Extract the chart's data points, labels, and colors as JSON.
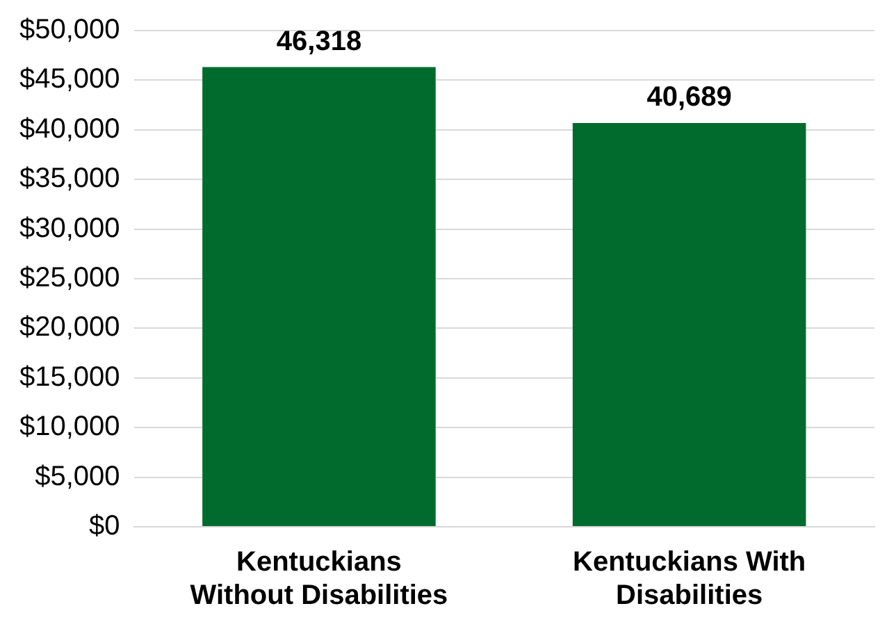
{
  "chart_data": {
    "type": "bar",
    "categories": [
      "Kentuckians Without Disabilities",
      "Kentuckians With Disabilities"
    ],
    "values": [
      46318,
      40689
    ],
    "color": "#006b2d",
    "ylim": [
      0,
      50000
    ],
    "yticks": [
      {
        "value": 0,
        "label": "$0"
      },
      {
        "value": 5000,
        "label": "$5,000"
      },
      {
        "value": 10000,
        "label": "$10,000"
      },
      {
        "value": 15000,
        "label": "$15,000"
      },
      {
        "value": 20000,
        "label": "$20,000"
      },
      {
        "value": 25000,
        "label": "$25,000"
      },
      {
        "value": 30000,
        "label": "$30,000"
      },
      {
        "value": 35000,
        "label": "$35,000"
      },
      {
        "value": 40000,
        "label": "$40,000"
      },
      {
        "value": 45000,
        "label": "$45,000"
      },
      {
        "value": 50000,
        "label": "$50,000"
      }
    ],
    "value_labels": [
      "46,318",
      "40,689"
    ],
    "grid": "y"
  }
}
